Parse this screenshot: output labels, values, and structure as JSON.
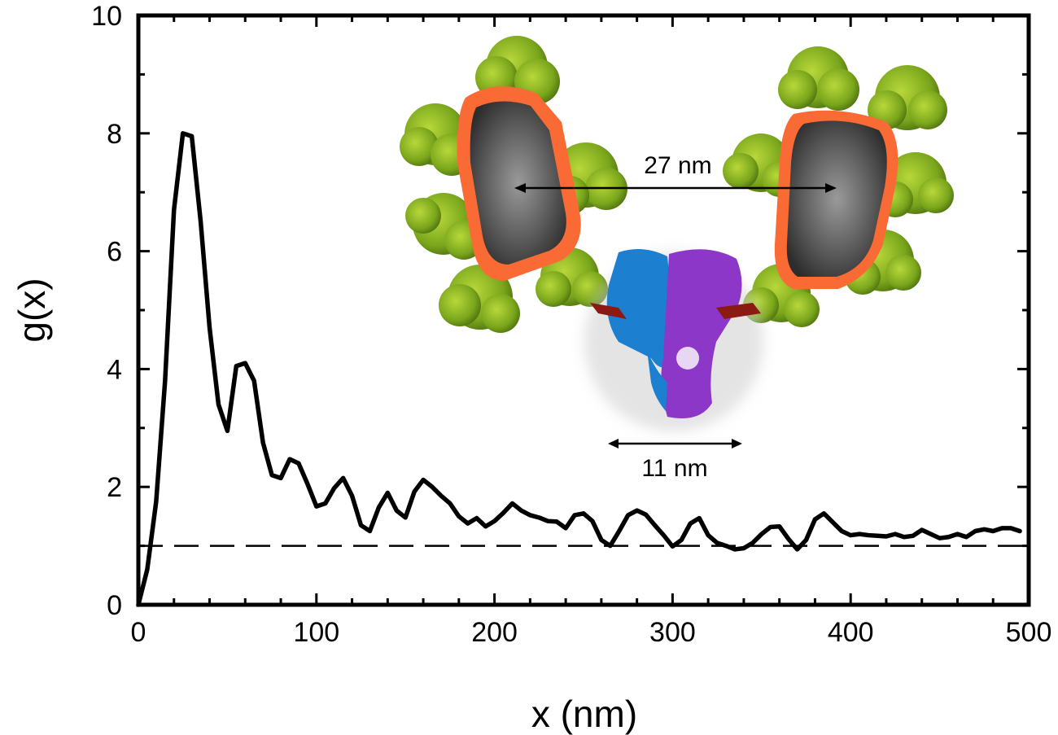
{
  "chart_data": {
    "type": "line",
    "xlabel": "x (nm)",
    "ylabel": "g(x)",
    "xlim": [
      0,
      500
    ],
    "ylim": [
      0,
      10
    ],
    "x_ticks": [
      0,
      100,
      200,
      300,
      400,
      500
    ],
    "y_ticks": [
      0,
      2,
      4,
      6,
      8,
      10
    ],
    "grid": false,
    "reference_line": {
      "y": 1,
      "style": "dashed"
    },
    "series": [
      {
        "color": "#000000",
        "points": [
          [
            0,
            0.0
          ],
          [
            5,
            0.6
          ],
          [
            10,
            1.75
          ],
          [
            15,
            3.8
          ],
          [
            20,
            6.7
          ],
          [
            25,
            8.0
          ],
          [
            30,
            7.95
          ],
          [
            35,
            6.5
          ],
          [
            40,
            4.7
          ],
          [
            45,
            3.4
          ],
          [
            50,
            2.95
          ],
          [
            55,
            4.05
          ],
          [
            60,
            4.1
          ],
          [
            65,
            3.8
          ],
          [
            70,
            2.75
          ],
          [
            75,
            2.2
          ],
          [
            80,
            2.15
          ],
          [
            85,
            2.47
          ],
          [
            90,
            2.4
          ],
          [
            95,
            2.05
          ],
          [
            100,
            1.67
          ],
          [
            105,
            1.72
          ],
          [
            110,
            1.98
          ],
          [
            115,
            2.15
          ],
          [
            120,
            1.85
          ],
          [
            125,
            1.35
          ],
          [
            130,
            1.25
          ],
          [
            135,
            1.65
          ],
          [
            140,
            1.9
          ],
          [
            145,
            1.6
          ],
          [
            150,
            1.48
          ],
          [
            155,
            1.92
          ],
          [
            160,
            2.12
          ],
          [
            165,
            2.0
          ],
          [
            170,
            1.85
          ],
          [
            175,
            1.72
          ],
          [
            180,
            1.5
          ],
          [
            185,
            1.38
          ],
          [
            190,
            1.47
          ],
          [
            195,
            1.33
          ],
          [
            200,
            1.42
          ],
          [
            205,
            1.56
          ],
          [
            210,
            1.72
          ],
          [
            215,
            1.6
          ],
          [
            220,
            1.52
          ],
          [
            225,
            1.48
          ],
          [
            230,
            1.42
          ],
          [
            235,
            1.41
          ],
          [
            240,
            1.3
          ],
          [
            245,
            1.52
          ],
          [
            250,
            1.55
          ],
          [
            255,
            1.42
          ],
          [
            260,
            1.1
          ],
          [
            265,
            1.0
          ],
          [
            270,
            1.25
          ],
          [
            275,
            1.52
          ],
          [
            280,
            1.6
          ],
          [
            285,
            1.53
          ],
          [
            290,
            1.35
          ],
          [
            295,
            1.18
          ],
          [
            300,
            0.99
          ],
          [
            305,
            1.1
          ],
          [
            310,
            1.38
          ],
          [
            315,
            1.47
          ],
          [
            320,
            1.18
          ],
          [
            325,
            1.05
          ],
          [
            330,
            1.0
          ],
          [
            335,
            0.94
          ],
          [
            340,
            0.96
          ],
          [
            345,
            1.05
          ],
          [
            350,
            1.2
          ],
          [
            355,
            1.32
          ],
          [
            360,
            1.33
          ],
          [
            365,
            1.12
          ],
          [
            370,
            0.94
          ],
          [
            375,
            1.1
          ],
          [
            380,
            1.45
          ],
          [
            385,
            1.55
          ],
          [
            390,
            1.4
          ],
          [
            395,
            1.25
          ],
          [
            400,
            1.18
          ],
          [
            405,
            1.2
          ],
          [
            410,
            1.18
          ],
          [
            415,
            1.17
          ],
          [
            420,
            1.16
          ],
          [
            425,
            1.2
          ],
          [
            430,
            1.15
          ],
          [
            435,
            1.17
          ],
          [
            440,
            1.27
          ],
          [
            445,
            1.2
          ],
          [
            450,
            1.13
          ],
          [
            455,
            1.15
          ],
          [
            460,
            1.2
          ],
          [
            465,
            1.15
          ],
          [
            470,
            1.25
          ],
          [
            475,
            1.28
          ],
          [
            480,
            1.25
          ],
          [
            485,
            1.3
          ],
          [
            490,
            1.3
          ],
          [
            495,
            1.25
          ]
        ]
      }
    ],
    "annotations": [
      "27 nm",
      "11 nm"
    ]
  }
}
